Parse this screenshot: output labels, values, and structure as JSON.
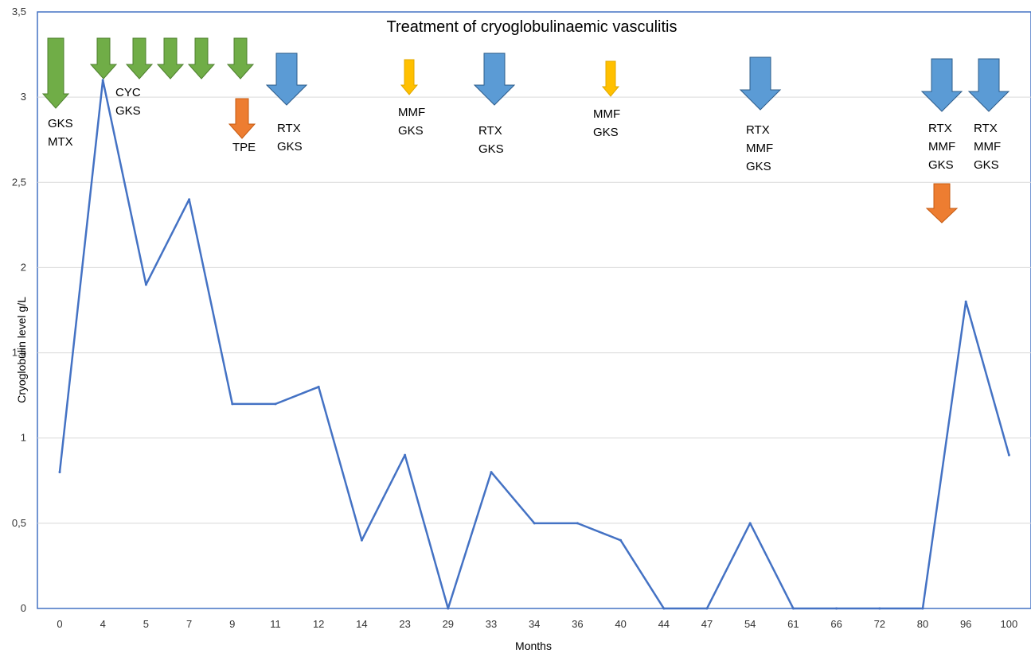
{
  "chart_data": {
    "type": "line",
    "title": "Treatment of cryoglobulinaemic  vasculitis",
    "xlabel": "Months",
    "ylabel": "Cryoglobulin  level g/L",
    "categories": [
      "0",
      "4",
      "5",
      "7",
      "9",
      "11",
      "12",
      "14",
      "23",
      "29",
      "33",
      "34",
      "36",
      "40",
      "44",
      "47",
      "54",
      "61",
      "66",
      "72",
      "80",
      "96",
      "100"
    ],
    "series": [
      {
        "values": [
          0.8,
          3.1,
          1.9,
          2.4,
          1.2,
          1.2,
          1.3,
          0.4,
          0.9,
          0,
          0.8,
          0.5,
          0.5,
          0.4,
          0,
          0,
          0.5,
          0,
          0,
          0,
          0,
          1.8,
          0.9
        ]
      }
    ],
    "ylim": [
      0,
      3.5
    ],
    "yticks": [
      "0",
      "0,5",
      "1",
      "1,5",
      "2",
      "2,5",
      "3",
      "3,5"
    ],
    "grid": true,
    "colors": {
      "line": "#4472C4",
      "green_arrow": "#70AD47",
      "blue_arrow": "#5B9BD5",
      "yellow_arrow": "#FFC000",
      "orange_arrow": "#ED7D31"
    },
    "annotations": [
      {
        "color": "green",
        "lines": [
          "GKS",
          "MTX"
        ]
      },
      {
        "color": "green",
        "lines": [
          "CYC",
          "GKS"
        ]
      },
      {
        "color": "green",
        "lines": []
      },
      {
        "color": "green",
        "lines": []
      },
      {
        "color": "green",
        "lines": []
      },
      {
        "color": "green",
        "lines": []
      },
      {
        "color": "orange",
        "lines": [
          "TPE"
        ]
      },
      {
        "color": "blue",
        "lines": [
          "RTX",
          "GKS"
        ]
      },
      {
        "color": "yellow",
        "lines": [
          "MMF",
          "GKS"
        ]
      },
      {
        "color": "blue",
        "lines": [
          "RTX",
          "GKS"
        ]
      },
      {
        "color": "yellow",
        "lines": [
          "MMF",
          "GKS"
        ]
      },
      {
        "color": "blue",
        "lines": [
          "RTX",
          "MMF",
          "GKS"
        ]
      },
      {
        "color": "blue",
        "lines": [
          "RTX",
          "MMF",
          "GKS"
        ]
      },
      {
        "color": "orange",
        "lines": []
      },
      {
        "color": "blue",
        "lines": [
          "RTX",
          "MMF",
          "GKS"
        ]
      }
    ]
  }
}
